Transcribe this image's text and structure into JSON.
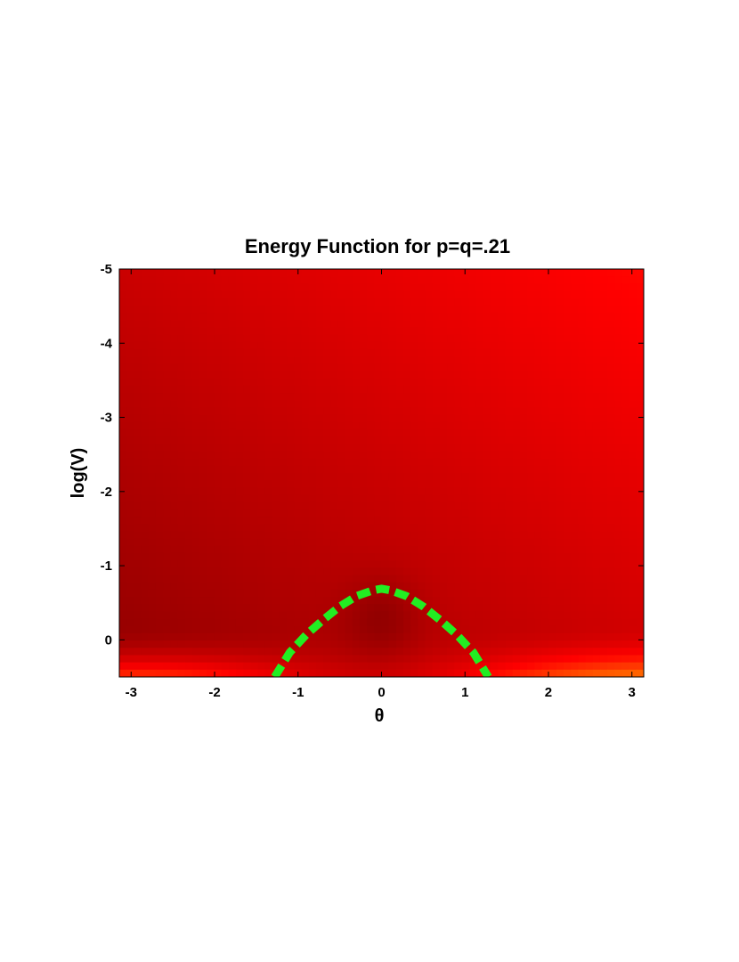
{
  "chart_data": {
    "type": "heatmap",
    "title": "Energy Function for p=q=.21",
    "xlabel": "θ",
    "ylabel": "log(V)",
    "xlim": [
      -3.1416,
      3.1416
    ],
    "ylim": [
      0.5,
      -5
    ],
    "y_axis_reversed": true,
    "grid": false,
    "colormap": "hot",
    "colormap_colors": [
      "#000000",
      "#8a0000",
      "#ff0000",
      "#ff8a00",
      "#ffff00",
      "#ffffff"
    ],
    "x_ticks": [
      -3,
      -2,
      -1,
      0,
      1,
      2,
      3
    ],
    "x_tick_labels": [
      "-3",
      "-2",
      "-1",
      "0",
      "1",
      "2",
      "3"
    ],
    "y_ticks": [
      -5,
      -4,
      -3,
      -2,
      -1,
      0
    ],
    "y_tick_labels": [
      "-5",
      "-4",
      "-3",
      "-2",
      "-1",
      "0"
    ],
    "overlay": {
      "type": "dashed-curve",
      "color": "#22ee22",
      "x": [
        -1.28,
        -1.1,
        -0.9,
        -0.7,
        -0.5,
        -0.3,
        -0.1,
        0.0,
        0.1,
        0.3,
        0.5,
        0.7,
        0.9,
        1.1,
        1.28
      ],
      "y": [
        0.5,
        0.17,
        -0.07,
        -0.27,
        -0.45,
        -0.59,
        -0.67,
        -0.69,
        -0.67,
        -0.59,
        -0.45,
        -0.27,
        -0.07,
        0.17,
        0.5
      ]
    }
  }
}
